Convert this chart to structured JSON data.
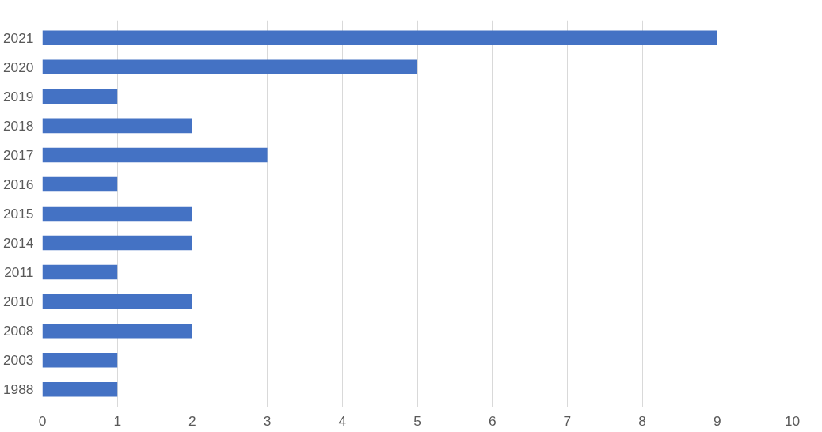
{
  "chart_data": {
    "type": "bar",
    "orientation": "horizontal",
    "categories": [
      "2021",
      "2020",
      "2019",
      "2018",
      "2017",
      "2016",
      "2015",
      "2014",
      "2011",
      "2010",
      "2008",
      "2003",
      "1988"
    ],
    "values": [
      9,
      5,
      1,
      2,
      3,
      1,
      2,
      2,
      1,
      2,
      2,
      1,
      1
    ],
    "color": "#4472c4",
    "xlim": [
      0,
      10
    ],
    "xticks": [
      0,
      1,
      2,
      3,
      4,
      5,
      6,
      7,
      8,
      9,
      10
    ],
    "grid": "x"
  }
}
